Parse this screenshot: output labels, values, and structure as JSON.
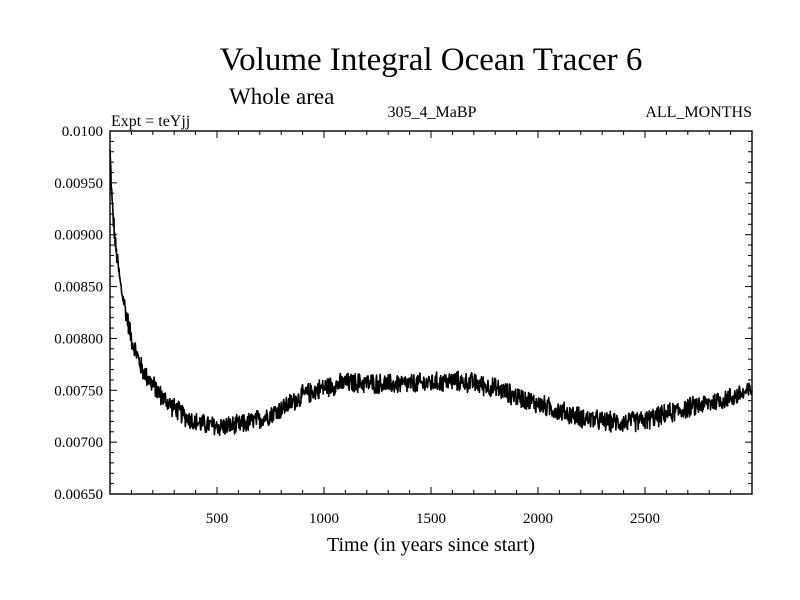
{
  "chart_data": {
    "type": "line",
    "title": "Volume Integral Ocean Tracer 6",
    "subtitle": "Whole area",
    "experiment_label": "Expt = teYjj",
    "period_label": "305_4_MaBP",
    "months_label": "ALL_MONTHS",
    "xlabel": "Time (in years since start)",
    "ylabel": "",
    "xlim": [
      0,
      3000
    ],
    "ylim": [
      0.0065,
      0.01
    ],
    "x_ticks": [
      500,
      1000,
      1500,
      2000,
      2500
    ],
    "x_tick_labels": [
      "500",
      "1000",
      "1500",
      "2000",
      "2500"
    ],
    "y_ticks": [
      0.0065,
      0.007,
      0.0075,
      0.008,
      0.0085,
      0.009,
      0.0095,
      0.01
    ],
    "y_tick_labels": [
      "0.00650",
      "0.00700",
      "0.00750",
      "0.00800",
      "0.00850",
      "0.00900",
      "0.00950",
      "0.0100"
    ],
    "grid": false,
    "series": [
      {
        "name": "Tracer 6",
        "color": "#000000",
        "noise_amplitude": 0.00011,
        "x": [
          0,
          10,
          25,
          50,
          80,
          100,
          150,
          200,
          250,
          300,
          350,
          400,
          500,
          600,
          700,
          800,
          900,
          1000,
          1100,
          1200,
          1300,
          1400,
          1500,
          1600,
          1700,
          1800,
          1900,
          2000,
          2100,
          2200,
          2300,
          2400,
          2500,
          2600,
          2700,
          2800,
          2900,
          3000
        ],
        "values": [
          0.0098,
          0.0093,
          0.0089,
          0.0085,
          0.0082,
          0.008,
          0.0077,
          0.00755,
          0.00742,
          0.00733,
          0.00725,
          0.00719,
          0.00715,
          0.00716,
          0.00722,
          0.00732,
          0.00745,
          0.00753,
          0.00757,
          0.00757,
          0.00756,
          0.00756,
          0.00757,
          0.00759,
          0.00757,
          0.00752,
          0.00744,
          0.00737,
          0.0073,
          0.00724,
          0.0072,
          0.00719,
          0.00721,
          0.00727,
          0.00733,
          0.00738,
          0.00743,
          0.0075
        ]
      }
    ]
  }
}
